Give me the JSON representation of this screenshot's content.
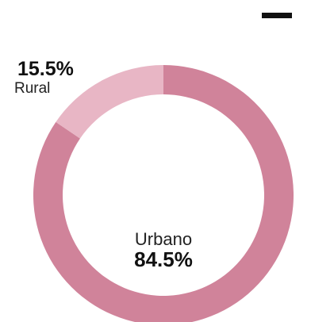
{
  "chart_data": {
    "type": "pie",
    "donut": true,
    "title": "",
    "categories": [
      "Urbano",
      "Rural"
    ],
    "values": [
      84.5,
      15.5
    ],
    "labels": {
      "urbano_name": "Urbano",
      "urbano_pct": "84.5%",
      "rural_name": "Rural",
      "rural_pct": "15.5%"
    },
    "colors": {
      "Urbano": "#d0839a",
      "Rural": "#e8b6c5"
    }
  }
}
